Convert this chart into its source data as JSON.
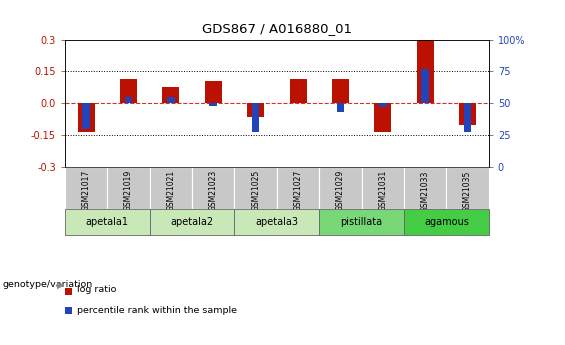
{
  "title": "GDS867 / A016880_01",
  "samples": [
    "GSM21017",
    "GSM21019",
    "GSM21021",
    "GSM21023",
    "GSM21025",
    "GSM21027",
    "GSM21029",
    "GSM21031",
    "GSM21033",
    "GSM21035"
  ],
  "log_ratio": [
    -0.135,
    0.115,
    0.075,
    0.105,
    -0.065,
    0.115,
    0.115,
    -0.135,
    0.305,
    -0.105
  ],
  "percentile_rank": [
    30,
    55,
    55,
    48,
    27,
    50,
    43,
    47,
    77,
    27
  ],
  "ylim_left": [
    -0.3,
    0.3
  ],
  "ylim_right": [
    0,
    100
  ],
  "yticks_left": [
    -0.3,
    -0.15,
    0.0,
    0.15,
    0.3
  ],
  "yticks_right": [
    0,
    25,
    50,
    75,
    100
  ],
  "hlines": [
    0.15,
    0.0,
    -0.15
  ],
  "groups": [
    {
      "label": "apetala1",
      "start": 0,
      "end": 1,
      "color": "#c8e8b8"
    },
    {
      "label": "apetala2",
      "start": 2,
      "end": 3,
      "color": "#c8e8b8"
    },
    {
      "label": "apetala3",
      "start": 4,
      "end": 5,
      "color": "#c8e8b8"
    },
    {
      "label": "pistillata",
      "start": 6,
      "end": 7,
      "color": "#78d878"
    },
    {
      "label": "agamous",
      "start": 8,
      "end": 9,
      "color": "#44cc44"
    }
  ],
  "bar_color_red": "#bb1100",
  "bar_color_blue": "#2244bb",
  "zero_line_color": "#cc3333",
  "bg_color": "#ffffff",
  "sample_box_color": "#c8c8c8",
  "genotype_label": "genotype/variation",
  "legend_red": "log ratio",
  "legend_blue": "percentile rank within the sample",
  "red_bar_width": 0.4,
  "blue_bar_width": 0.18
}
